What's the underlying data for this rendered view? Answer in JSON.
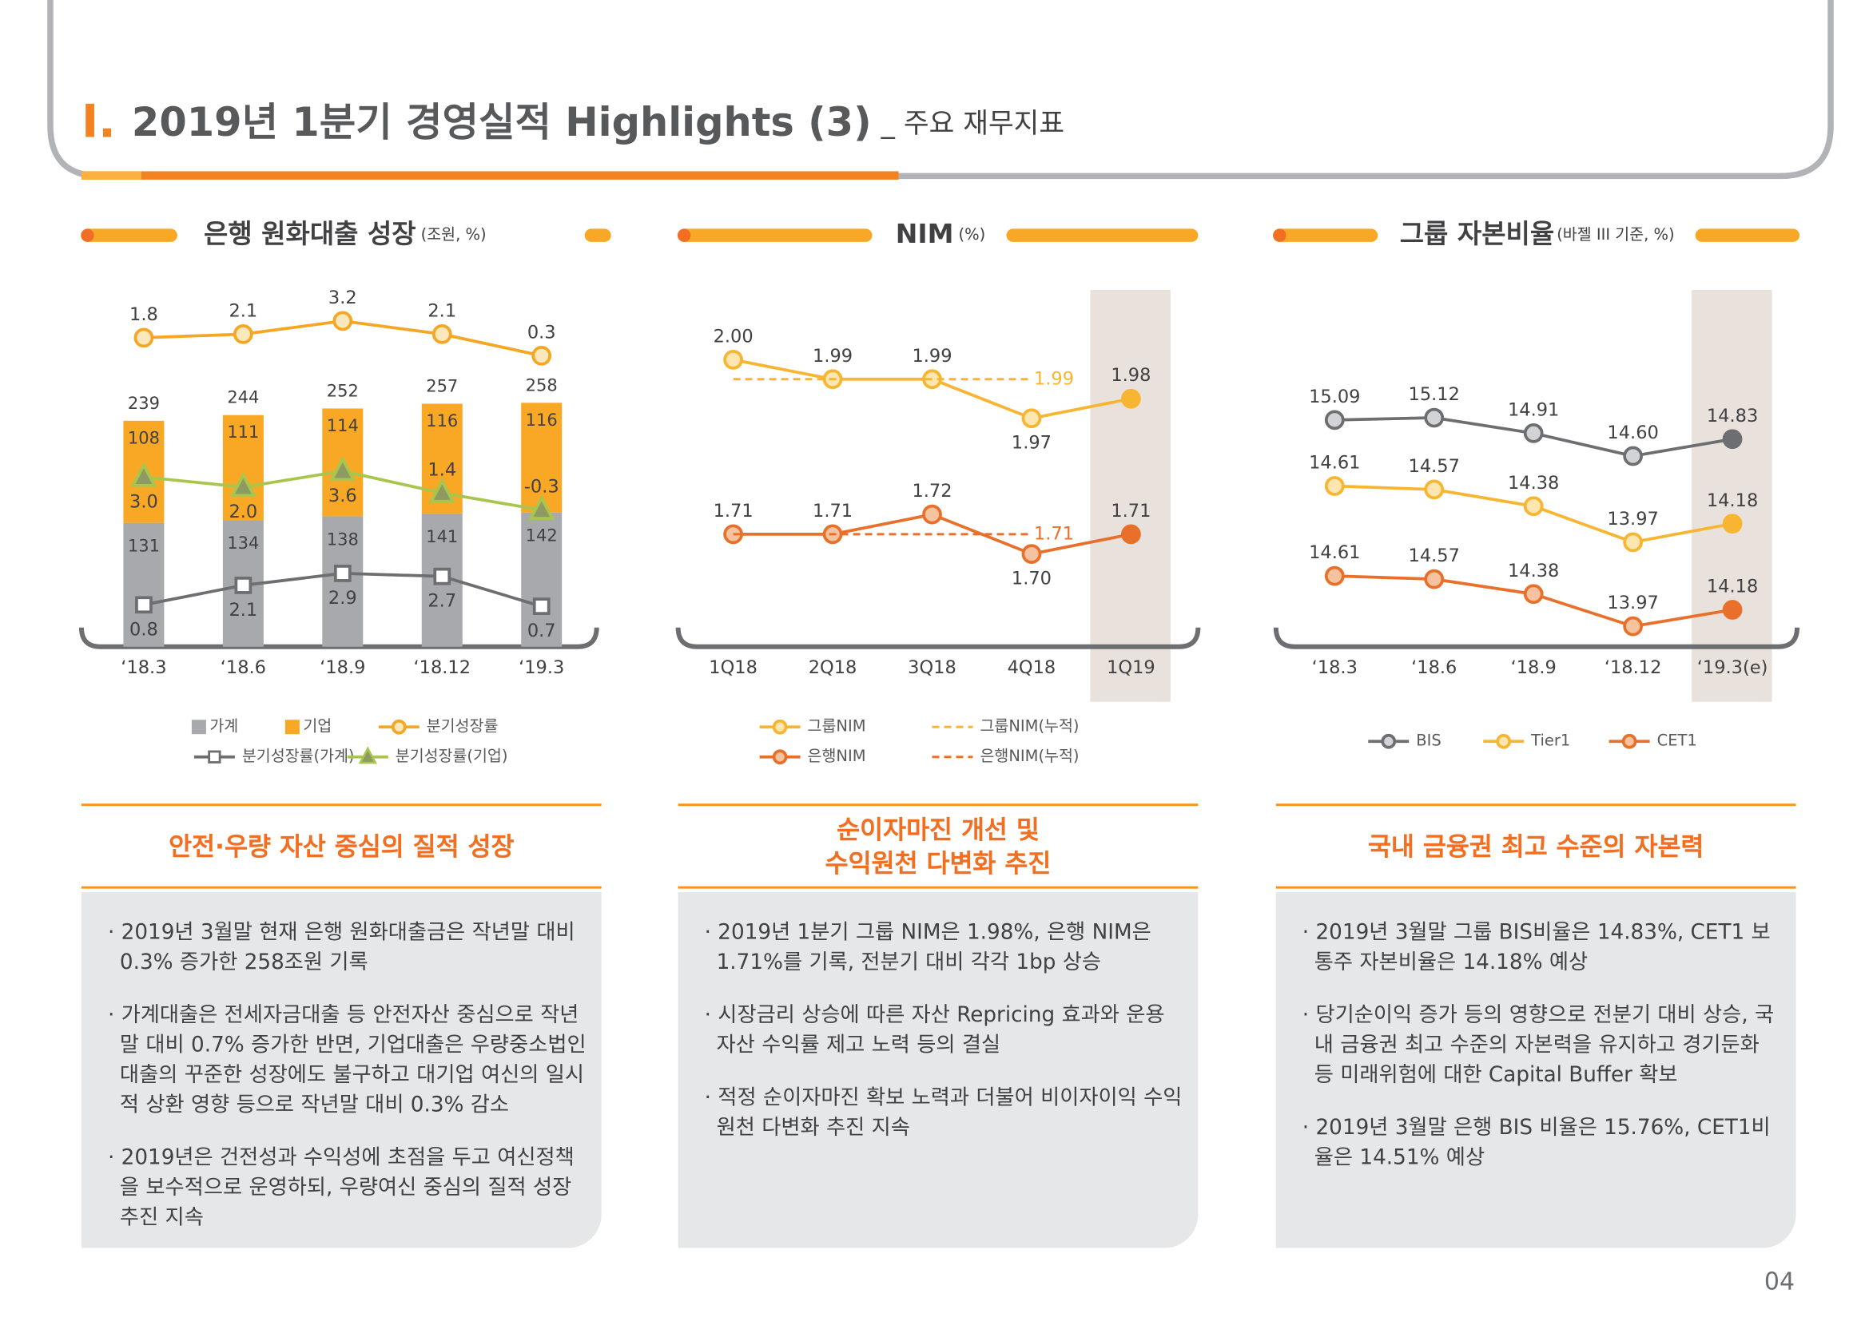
{
  "header": {
    "mark": "I.",
    "title": "2019년 1분기 경영실적 Highlights (3)",
    "subtitle": "_ 주요 재무지표"
  },
  "chart_data": [
    {
      "type": "combo",
      "title": "은행 원화대출 성장",
      "unit": "(조원, %)",
      "categories": [
        "‘18.3",
        "‘18.6",
        "‘18.9",
        "‘18.12",
        "‘19.3"
      ],
      "ylim": [
        0,
        380
      ],
      "totals": [
        239,
        244,
        252,
        257,
        258
      ],
      "series": [
        {
          "name": "가계",
          "type": "bar",
          "color": "#a7a9ac",
          "values": [
            131,
            134,
            138,
            141,
            142
          ]
        },
        {
          "name": "기업",
          "type": "bar",
          "color": "#f9a825",
          "values": [
            108,
            111,
            114,
            116,
            116
          ]
        },
        {
          "name": "분기성장률",
          "type": "line",
          "marker": "circle",
          "color": "#f5a623",
          "marker_fill": "#fde8bd",
          "ylim": [
            -24,
            6
          ],
          "values": [
            1.8,
            2.1,
            3.2,
            2.1,
            0.3
          ]
        },
        {
          "name": "분기성장률(가계)",
          "type": "line",
          "marker": "square",
          "color": "#6d6e71",
          "marker_fill": "#ffffff",
          "ylim": [
            -2,
            22
          ],
          "values": [
            0.8,
            2.1,
            2.9,
            2.7,
            0.7
          ]
        },
        {
          "name": "분기성장률(기업)",
          "type": "line",
          "marker": "triangle",
          "color": "#a8c64e",
          "marker_fill": "#8f9a63",
          "ylim": [
            -14,
            22
          ],
          "values": [
            3.0,
            2.0,
            3.6,
            1.4,
            -0.3
          ],
          "value_labels": [
            "3.0",
            "2.0",
            "3.6",
            "1.4",
            "-0.3"
          ]
        }
      ]
    },
    {
      "type": "line",
      "title": "NIM",
      "unit": "(%)",
      "categories": [
        "1Q18",
        "2Q18",
        "3Q18",
        "4Q18",
        "1Q19"
      ],
      "highlight": "1Q19",
      "series": [
        {
          "name": "그룹NIM",
          "type": "line",
          "marker": "circle",
          "color": "#f7b531",
          "marker_fill": "#fde6b0",
          "ylim": [
            1.853,
            2.037
          ],
          "values": [
            2.0,
            1.99,
            1.99,
            1.97,
            1.98
          ],
          "value_labels": [
            "2.00",
            "1.99",
            "1.99",
            "1.97",
            "1.98"
          ]
        },
        {
          "name": "그룹NIM(누적)",
          "type": "line",
          "style": "dashed",
          "color": "#f7b531",
          "ylim": [
            1.853,
            2.037
          ],
          "values": [
            1.99,
            1.99,
            1.99,
            1.99,
            null
          ]
        },
        {
          "name": "은행NIM",
          "type": "line",
          "marker": "circle",
          "color": "#e8702a",
          "marker_fill": "#f6c3a0",
          "ylim": [
            1.653,
            1.835
          ],
          "values": [
            1.71,
            1.71,
            1.72,
            1.7,
            1.71
          ],
          "value_labels": [
            "1.71",
            "1.71",
            "1.72",
            "1.70",
            "1.71"
          ]
        },
        {
          "name": "은행NIM(누적)",
          "type": "line",
          "style": "dashed",
          "color": "#e8702a",
          "ylim": [
            1.653,
            1.835
          ],
          "values": [
            1.71,
            1.71,
            1.71,
            1.71,
            null
          ]
        }
      ]
    },
    {
      "type": "line",
      "title": "그룹 자본비율",
      "unit": "(바젤 III 기준, %)",
      "categories": [
        "‘18.3",
        "‘18.6",
        "‘18.9",
        "‘18.12",
        "‘19.3(e)"
      ],
      "highlight": "‘19.3(e)",
      "series": [
        {
          "name": "BIS",
          "type": "line",
          "marker": "circle",
          "color": "#6d6e71",
          "marker_fill": "#d1d3d4",
          "ylim": [
            12.01,
            16.89
          ],
          "values": [
            15.09,
            15.12,
            14.91,
            14.6,
            14.83
          ],
          "value_labels": [
            "15.09",
            "15.12",
            "14.91",
            "14.60",
            "14.83"
          ]
        },
        {
          "name": "Tier1",
          "type": "line",
          "marker": "circle",
          "color": "#f7b531",
          "marker_fill": "#fde6b0",
          "ylim": [
            12.78,
            16.87
          ],
          "values": [
            14.61,
            14.57,
            14.38,
            13.97,
            14.18
          ]
        },
        {
          "name": "CET1",
          "type": "line",
          "marker": "circle",
          "color": "#e8702a",
          "marker_fill": "#f6c3a0",
          "ylim": [
            13.71,
            18.28
          ],
          "values": [
            14.61,
            14.57,
            14.38,
            13.97,
            14.18
          ]
        }
      ]
    }
  ],
  "panels": [
    {
      "title": [
        "안전·우량 자산 중심의 질적 성장"
      ],
      "bullets": [
        "· 2019년 3월말 현재 은행 원화대출금은 작년말 대비 0.3% 증가한 258조원 기록",
        "· 가계대출은 전세자금대출 등 안전자산 중심으로 작년말 대비 0.7% 증가한 반면, 기업대출은 우량중소법인대출의 꾸준한 성장에도 불구하고 대기업 여신의 일시적 상환 영향 등으로 작년말 대비 0.3% 감소",
        "· 2019년은 건전성과 수익성에 초점을 두고 여신정책을 보수적으로 운영하되, 우량여신 중심의 질적 성장 추진 지속"
      ]
    },
    {
      "title": [
        "순이자마진 개선 및",
        "수익원천 다변화 추진"
      ],
      "bullets": [
        "· 2019년 1분기 그룹 NIM은 1.98%, 은행 NIM은 1.71%를 기록, 전분기 대비 각각 1bp 상승",
        "· 시장금리 상승에 따른 자산 Repricing 효과와 운용 자산 수익률 제고 노력 등의 결실",
        "· 적정 순이자마진 확보 노력과 더불어 비이자이익 수익원천 다변화 추진 지속"
      ]
    },
    {
      "title": [
        "국내 금융권 최고 수준의 자본력"
      ],
      "bullets": [
        "· 2019년 3월말 그룹 BIS비율은 14.83%, CET1 보통주 자본비율은 14.18% 예상",
        "· 당기순이익 증가 등의 영향으로 전분기 대비 상승, 국내 금융권 최고 수준의 자본력을 유지하고 경기둔화 등 미래위험에 대한 Capital Buffer 확보",
        "· 2019년 3월말 은행 BIS 비율은 15.76%, CET1비율은 14.51% 예상"
      ]
    }
  ],
  "page_number": "04"
}
